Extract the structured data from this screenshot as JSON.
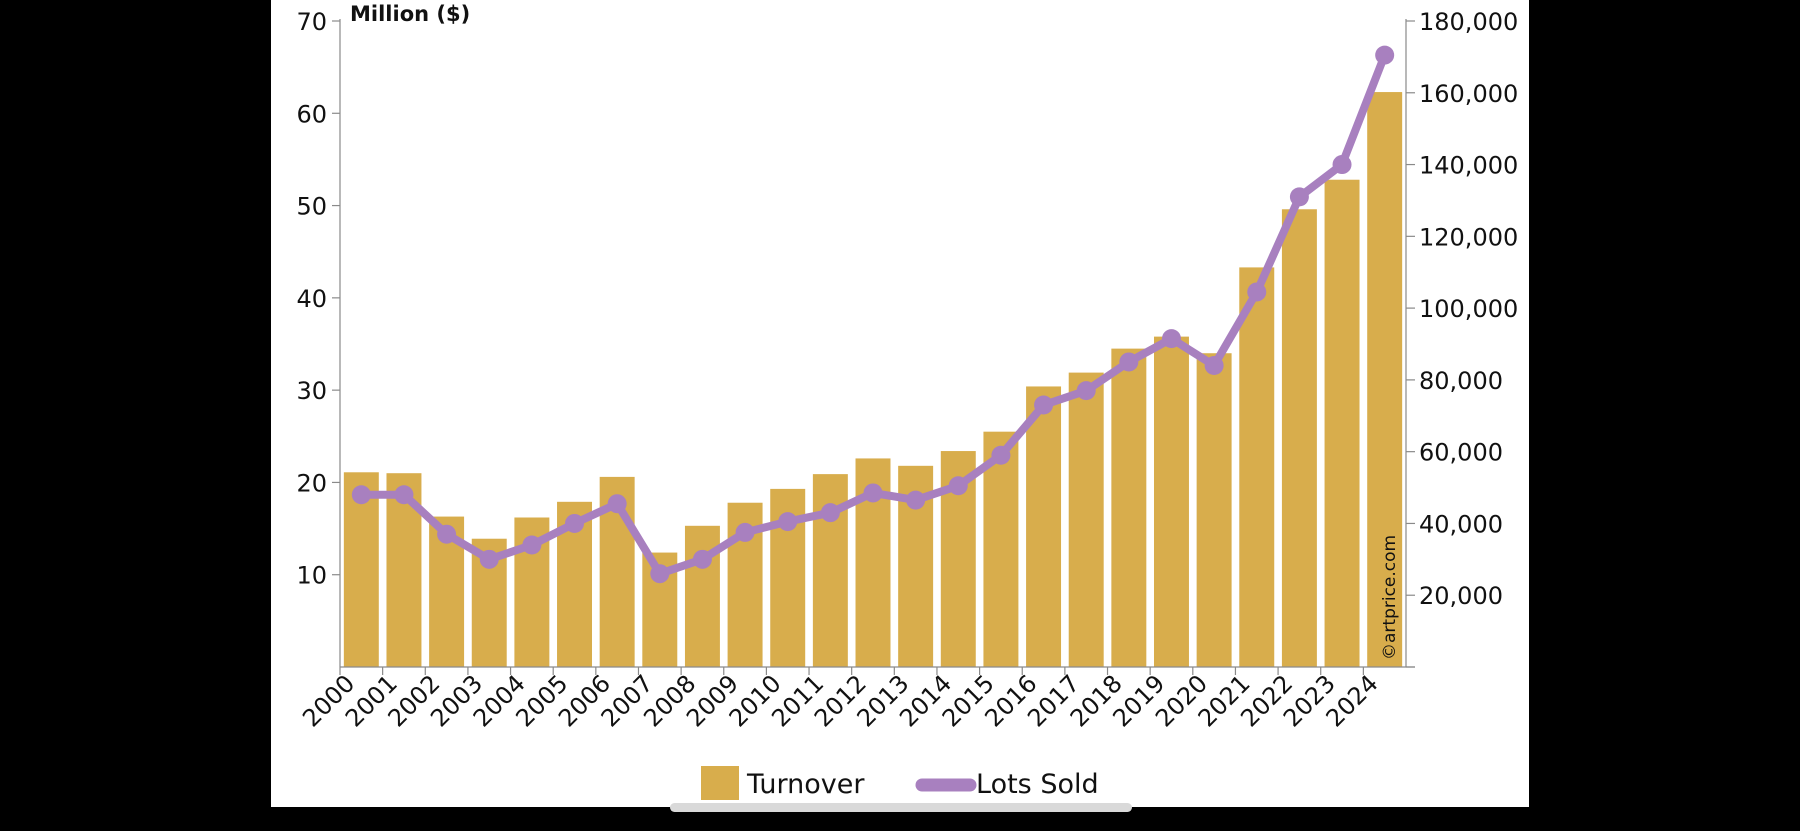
{
  "chart_data": {
    "type": "bar+line",
    "title": "",
    "y_left_unit_label": "Million ($)",
    "categories": [
      "2000",
      "2001",
      "2002",
      "2003",
      "2004",
      "2005",
      "2006",
      "2007",
      "2008",
      "2009",
      "2010",
      "2011",
      "2012",
      "2013",
      "2014",
      "2015",
      "2016",
      "2017",
      "2018",
      "2019",
      "2020",
      "2021",
      "2022",
      "2023",
      "2024"
    ],
    "series": [
      {
        "name": "Turnover",
        "type": "bar",
        "axis": "left",
        "color": "#d8ad4c",
        "values": [
          21.1,
          21.0,
          16.3,
          13.9,
          16.2,
          17.9,
          20.6,
          12.4,
          15.3,
          17.8,
          19.3,
          20.9,
          22.6,
          21.8,
          23.4,
          25.5,
          30.4,
          31.9,
          34.5,
          35.8,
          34.0,
          43.3,
          49.6,
          52.8,
          62.3
        ]
      },
      {
        "name": "Lots Sold",
        "type": "line",
        "axis": "right",
        "color": "#a880bf",
        "values": [
          48000,
          48000,
          37000,
          30000,
          34000,
          40000,
          45500,
          26000,
          30000,
          37500,
          40500,
          43000,
          48500,
          46500,
          50500,
          59000,
          73000,
          77000,
          85000,
          91500,
          84000,
          104500,
          131000,
          140000,
          170500
        ]
      }
    ],
    "y_left": {
      "ylim": [
        0,
        70
      ],
      "ticks": [
        10,
        20,
        30,
        40,
        50,
        60,
        70
      ],
      "tick_labels": [
        "10",
        "20",
        "30",
        "40",
        "50",
        "60",
        "70"
      ]
    },
    "y_right": {
      "ylim": [
        0,
        180000
      ],
      "ticks": [
        20000,
        40000,
        60000,
        80000,
        100000,
        120000,
        140000,
        160000,
        180000
      ],
      "tick_labels": [
        "20,000",
        "40,000",
        "60,000",
        "80,000",
        "100,000",
        "120,000",
        "140,000",
        "160,000",
        "180,000"
      ]
    },
    "legend": {
      "placement": "bottom-center",
      "items": [
        "Turnover",
        "Lots Sold"
      ]
    },
    "watermark": "©artprice.com",
    "grid": false
  }
}
